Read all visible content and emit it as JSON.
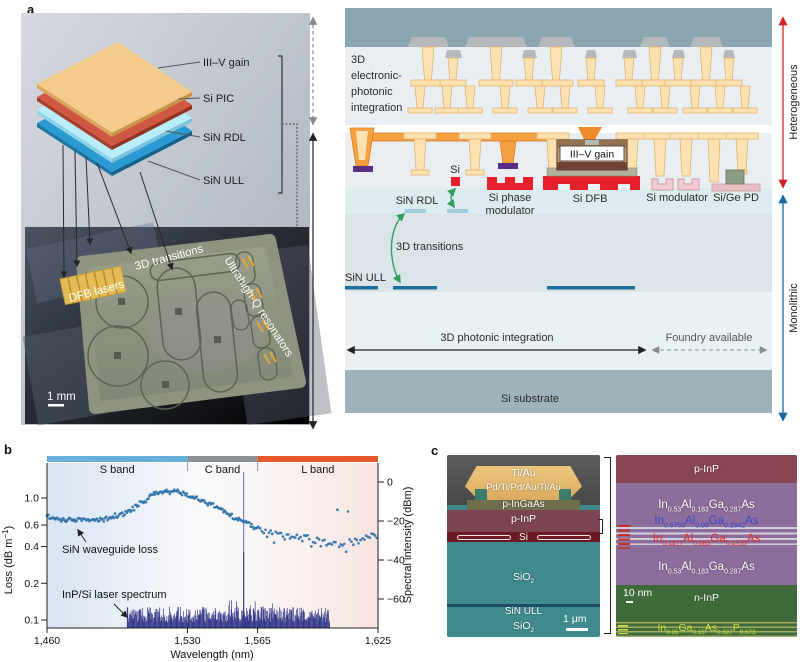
{
  "figure": {
    "a": "a",
    "b": "b",
    "c": "c"
  },
  "panel_a": {
    "stack": {
      "layers": [
        {
          "label": "III–V gain",
          "color": "#f3cb8b"
        },
        {
          "label": "Si PIC",
          "color": "#d05742"
        },
        {
          "label": "SiN RDL",
          "color": "#b9edfa"
        },
        {
          "label": "SiN ULL",
          "color": "#2a9ad2"
        }
      ]
    },
    "photo": {
      "dfb": "DFB lasers",
      "transitions": "3D transitions",
      "uhq": "Ultrahigh-Q resonators",
      "scale_bar": "1 mm"
    },
    "xsec": {
      "integration": [
        "3D",
        "electronic-",
        "photonic",
        "integration"
      ],
      "si": "Si",
      "sin_rdl": "SiN RDL",
      "phase_mod": [
        "Si phase",
        "modulator"
      ],
      "si_dfb": "Si DFB",
      "iii_v": "III–V gain",
      "si_mod": "Si modulator",
      "si_ge_pd": "Si/Ge PD",
      "transitions": "3D transitions",
      "sin_ull": "SiN ULL",
      "photonic": "3D photonic integration",
      "foundry": "Foundry available",
      "substrate": "Si substrate"
    },
    "side": {
      "hetero": "Heterogeneous",
      "mono": "Monolithic"
    }
  },
  "panel_b": {
    "chart_data": {
      "type": "scatter",
      "xlabel": "Wavelength (nm)",
      "x_range": [
        1460,
        1625
      ],
      "x_ticks": [
        {
          "v": 1460,
          "label": "1,460"
        },
        {
          "v": 1530,
          "label": "1,530"
        },
        {
          "v": 1565,
          "label": "1,565"
        },
        {
          "v": 1625,
          "label": "1,625"
        }
      ],
      "bands": [
        {
          "label": "S band",
          "from": 1460,
          "to": 1530,
          "color": "#68aedb"
        },
        {
          "label": "C band",
          "from": 1530,
          "to": 1565,
          "color": "#8e9194"
        },
        {
          "label": "L band",
          "from": 1565,
          "to": 1625,
          "color": "#e55a28"
        }
      ],
      "loss": {
        "name": "SiN waveguide loss",
        "ylabel_parts": [
          "Loss (dB m",
          "−1",
          ")"
        ],
        "scale": "log",
        "y_ticks": [
          1.0,
          0.6,
          0.4,
          0.2,
          0.1
        ],
        "color": "#2f73a8",
        "trend_x": [
          1460,
          1466,
          1472,
          1478,
          1484,
          1490,
          1496,
          1502,
          1508,
          1514,
          1519,
          1524,
          1530,
          1536,
          1542,
          1548,
          1554,
          1560,
          1565,
          1572,
          1580,
          1590,
          1600,
          1610,
          1618,
          1625
        ],
        "trend_y": [
          0.7,
          0.67,
          0.65,
          0.66,
          0.66,
          0.68,
          0.72,
          0.8,
          0.95,
          1.08,
          1.13,
          1.12,
          1.05,
          0.97,
          0.88,
          0.78,
          0.68,
          0.62,
          0.57,
          0.53,
          0.49,
          0.46,
          0.44,
          0.43,
          0.46,
          0.5
        ],
        "sigma_log_sc": 0.023,
        "sigma_log_l": 0.055
      },
      "spectrum": {
        "name": "InP/Si laser spectrum",
        "ylabel": "Spectral intensity (dBm)",
        "y_ticks": [
          0,
          -20,
          -40,
          -60
        ],
        "span_nm": [
          1500,
          1601
        ],
        "floor_dbm": [
          -72,
          -64
        ],
        "peak_nm": 1558,
        "peak_dbm": 5,
        "color": "#383d8c",
        "peak_color": "#7b82c0"
      }
    }
  },
  "panel_c": {
    "sem": {
      "ti_au": "Ti/Au",
      "pd_stack": "Pd/Ti/Pd/Au/Ti/Au",
      "p_ingaas": "p-InGaAs",
      "p_inp": "p-InP",
      "si": "Si",
      "sio2": [
        [
          "SiO",
          "2"
        ]
      ],
      "sin_ull": "SiN ULL",
      "sio2b": [
        [
          "SiO",
          "2"
        ]
      ],
      "scale_bar": "1 μm"
    },
    "tem": {
      "p_inp": "p-InP",
      "q1": [
        [
          "In",
          "0.53"
        ],
        [
          "Al",
          "0.183"
        ],
        [
          "Ga",
          "0.287"
        ],
        [
          "As",
          ""
        ]
      ],
      "q2": [
        [
          "In",
          "0.6758"
        ],
        [
          "Al",
          "0.08"
        ],
        [
          "Ga",
          "0.2642"
        ],
        [
          "As",
          ""
        ]
      ],
      "q3": [
        [
          "In",
          "0.4411"
        ],
        [
          "Al",
          "0.085"
        ],
        [
          "Ga",
          "0.4739"
        ],
        [
          "As",
          ""
        ]
      ],
      "q4": [
        [
          "In",
          "0.53"
        ],
        [
          "Al",
          "0.183"
        ],
        [
          "Ga",
          "0.287"
        ],
        [
          "As",
          ""
        ]
      ],
      "n_inp": "n-InP",
      "q5": [
        [
          "In",
          "0.85"
        ],
        [
          "Ga",
          "0.15"
        ],
        [
          "As",
          "0.327"
        ],
        [
          "P",
          "0.673"
        ]
      ],
      "scale_bar": "10 nm"
    }
  }
}
